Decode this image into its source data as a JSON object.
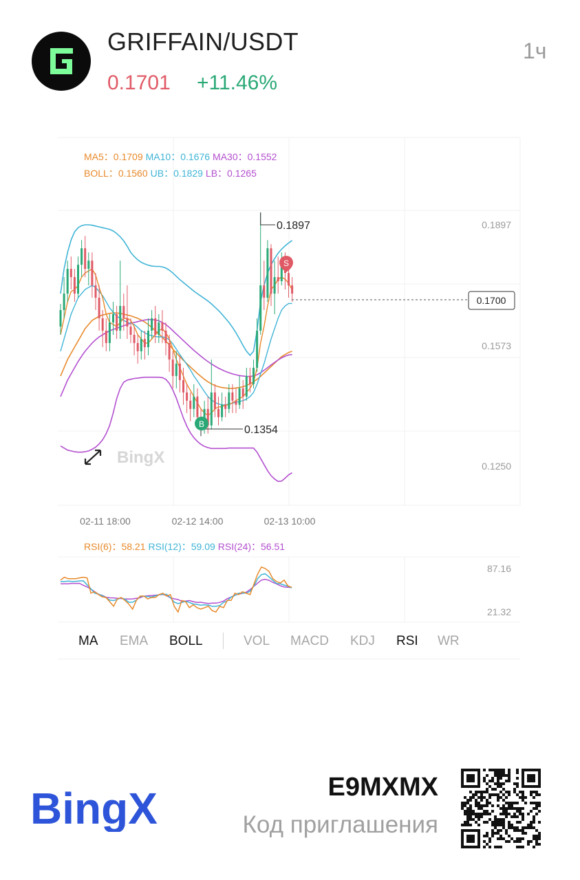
{
  "header": {
    "pair": "GRIFFAIN/USDT",
    "price": "0.1701",
    "change": "+11.46%",
    "interval": "1ч",
    "logo_icon": "griffain-g-icon",
    "price_color": "#e05a66",
    "change_color": "#2aa876"
  },
  "indicators": {
    "ma": [
      {
        "label": "MA5：",
        "value": "0.1709",
        "color": "#e8892b"
      },
      {
        "label": "MA10：",
        "value": "0.1676",
        "color": "#3fb4d6"
      },
      {
        "label": "MA30：",
        "value": "0.1552",
        "color": "#b34fcf"
      }
    ],
    "boll": [
      {
        "label": "BOLL：",
        "value": "0.1560",
        "color": "#e8892b"
      },
      {
        "label": "UB：",
        "value": "0.1829",
        "color": "#3fb4d6"
      },
      {
        "label": "LB：",
        "value": "0.1265",
        "color": "#b34fcf"
      }
    ],
    "rsi": [
      {
        "label": "RSI(6)：",
        "value": "58.21",
        "color": "#e8892b"
      },
      {
        "label": "RSI(12)：",
        "value": "59.09",
        "color": "#3fb4d6"
      },
      {
        "label": "RSI(24)：",
        "value": "56.51",
        "color": "#b34fcf"
      }
    ]
  },
  "chart_data": {
    "type": "candlestick",
    "price_axis_labels": [
      "0.1897",
      "0.1573",
      "0.1250"
    ],
    "current_price": "0.1700",
    "high_label": "0.1897",
    "low_label": "0.1354",
    "time_labels": [
      "02-11 18:00",
      "02-12 14:00",
      "02-13 10:00"
    ],
    "rsi_axis_labels": [
      "87.16",
      "21.32"
    ],
    "buy_marker": "B",
    "sell_marker": "S",
    "up_color": "#2aa876",
    "down_color": "#e05a66",
    "y_range": [
      0.1186,
      0.2079
    ],
    "grid": true,
    "watermark": "BingX",
    "candles": [
      [
        0.162,
        0.166,
        0.16,
        0.1675
      ],
      [
        0.166,
        0.17,
        0.164,
        0.174
      ],
      [
        0.17,
        0.176,
        0.168,
        0.178
      ],
      [
        0.176,
        0.174,
        0.171,
        0.179
      ],
      [
        0.174,
        0.17,
        0.168,
        0.176
      ],
      [
        0.17,
        0.177,
        0.169,
        0.179
      ],
      [
        0.177,
        0.181,
        0.174,
        0.183
      ],
      [
        0.181,
        0.176,
        0.174,
        0.184
      ],
      [
        0.176,
        0.178,
        0.172,
        0.18
      ],
      [
        0.178,
        0.172,
        0.169,
        0.18
      ],
      [
        0.172,
        0.169,
        0.166,
        0.175
      ],
      [
        0.169,
        0.164,
        0.161,
        0.172
      ],
      [
        0.164,
        0.161,
        0.157,
        0.166
      ],
      [
        0.161,
        0.158,
        0.156,
        0.164
      ],
      [
        0.158,
        0.163,
        0.156,
        0.165
      ],
      [
        0.163,
        0.165,
        0.16,
        0.168
      ],
      [
        0.165,
        0.161,
        0.159,
        0.167
      ],
      [
        0.161,
        0.167,
        0.159,
        0.178
      ],
      [
        0.167,
        0.164,
        0.161,
        0.17
      ],
      [
        0.164,
        0.162,
        0.159,
        0.172
      ],
      [
        0.162,
        0.16,
        0.158,
        0.164
      ],
      [
        0.16,
        0.158,
        0.155,
        0.162
      ],
      [
        0.158,
        0.156,
        0.153,
        0.16
      ],
      [
        0.156,
        0.159,
        0.154,
        0.161
      ],
      [
        0.159,
        0.157,
        0.154,
        0.161
      ],
      [
        0.157,
        0.161,
        0.155,
        0.164
      ],
      [
        0.161,
        0.164,
        0.159,
        0.166
      ],
      [
        0.164,
        0.16,
        0.158,
        0.167
      ],
      [
        0.16,
        0.163,
        0.158,
        0.165
      ],
      [
        0.163,
        0.161,
        0.158,
        0.166
      ],
      [
        0.161,
        0.158,
        0.155,
        0.163
      ],
      [
        0.158,
        0.154,
        0.151,
        0.16
      ],
      [
        0.154,
        0.15,
        0.147,
        0.156
      ],
      [
        0.15,
        0.153,
        0.147,
        0.156
      ],
      [
        0.153,
        0.149,
        0.146,
        0.155
      ],
      [
        0.149,
        0.146,
        0.143,
        0.152
      ],
      [
        0.146,
        0.144,
        0.141,
        0.148
      ],
      [
        0.144,
        0.142,
        0.139,
        0.146
      ],
      [
        0.142,
        0.145,
        0.14,
        0.148
      ],
      [
        0.145,
        0.14,
        0.138,
        0.147
      ],
      [
        0.14,
        0.137,
        0.1354,
        0.142
      ],
      [
        0.137,
        0.142,
        0.136,
        0.144
      ],
      [
        0.142,
        0.138,
        0.136,
        0.145
      ],
      [
        0.138,
        0.146,
        0.137,
        0.154
      ],
      [
        0.146,
        0.142,
        0.14,
        0.148
      ],
      [
        0.142,
        0.14,
        0.138,
        0.145
      ],
      [
        0.14,
        0.143,
        0.139,
        0.146
      ],
      [
        0.143,
        0.142,
        0.14,
        0.145
      ],
      [
        0.142,
        0.146,
        0.141,
        0.148
      ],
      [
        0.146,
        0.144,
        0.141,
        0.148
      ],
      [
        0.144,
        0.143,
        0.141,
        0.147
      ],
      [
        0.143,
        0.147,
        0.142,
        0.15
      ],
      [
        0.147,
        0.145,
        0.142,
        0.149
      ],
      [
        0.145,
        0.15,
        0.144,
        0.152
      ],
      [
        0.15,
        0.148,
        0.146,
        0.152
      ],
      [
        0.148,
        0.152,
        0.147,
        0.154
      ],
      [
        0.152,
        0.161,
        0.151,
        0.164
      ],
      [
        0.161,
        0.172,
        0.16,
        0.1897
      ],
      [
        0.172,
        0.169,
        0.166,
        0.178
      ],
      [
        0.169,
        0.181,
        0.168,
        0.183
      ],
      [
        0.181,
        0.17,
        0.167,
        0.182
      ],
      [
        0.17,
        0.174,
        0.165,
        0.178
      ],
      [
        0.174,
        0.173,
        0.17,
        0.179
      ],
      [
        0.173,
        0.178,
        0.172,
        0.18
      ],
      [
        0.178,
        0.175,
        0.171,
        0.18
      ],
      [
        0.175,
        0.172,
        0.169,
        0.176
      ],
      [
        0.172,
        0.17,
        0.168,
        0.174
      ]
    ],
    "ma5": [
      0.16,
      0.164,
      0.168,
      0.1705,
      0.171,
      0.172,
      0.174,
      0.175,
      0.1755,
      0.176,
      0.1745,
      0.1715,
      0.169,
      0.165,
      0.163,
      0.1625,
      0.162,
      0.163,
      0.164,
      0.164,
      0.1635,
      0.162,
      0.16,
      0.159,
      0.158,
      0.158,
      0.159,
      0.16,
      0.161,
      0.1615,
      0.1605,
      0.159,
      0.1565,
      0.154,
      0.152,
      0.15,
      0.148,
      0.1465,
      0.145,
      0.1435,
      0.142,
      0.141,
      0.1405,
      0.141,
      0.142,
      0.1425,
      0.1425,
      0.143,
      0.143,
      0.1435,
      0.144,
      0.1445,
      0.145,
      0.146,
      0.147,
      0.1485,
      0.152,
      0.158,
      0.162,
      0.167,
      0.171,
      0.172,
      0.1735,
      0.174,
      0.1735,
      0.1725,
      0.1709
    ],
    "ma10": [
      0.156,
      0.159,
      0.162,
      0.165,
      0.167,
      0.169,
      0.17,
      0.171,
      0.1715,
      0.172,
      0.1715,
      0.1705,
      0.1695,
      0.168,
      0.1665,
      0.1655,
      0.1645,
      0.164,
      0.1635,
      0.163,
      0.1628,
      0.1625,
      0.1618,
      0.161,
      0.1605,
      0.16,
      0.1598,
      0.1596,
      0.1595,
      0.1595,
      0.1593,
      0.1588,
      0.1578,
      0.1565,
      0.1552,
      0.154,
      0.1528,
      0.1515,
      0.15,
      0.1488,
      0.1475,
      0.1462,
      0.145,
      0.1442,
      0.1436,
      0.1432,
      0.143,
      0.143,
      0.1432,
      0.1434,
      0.1436,
      0.1438,
      0.144,
      0.1444,
      0.145,
      0.146,
      0.148,
      0.1505,
      0.153,
      0.156,
      0.159,
      0.1615,
      0.164,
      0.166,
      0.167,
      0.1676,
      0.1676
    ],
    "ma30": [
      0.145,
      0.147,
      0.149,
      0.1505,
      0.152,
      0.1535,
      0.1548,
      0.156,
      0.157,
      0.158,
      0.1588,
      0.1595,
      0.16,
      0.1605,
      0.161,
      0.1613,
      0.1616,
      0.1619,
      0.1622,
      0.1625,
      0.1628,
      0.163,
      0.1632,
      0.1634,
      0.1636,
      0.1637,
      0.1637,
      0.1636,
      0.1634,
      0.163,
      0.1625,
      0.1618,
      0.161,
      0.1602,
      0.1594,
      0.1586,
      0.1578,
      0.157,
      0.1562,
      0.1555,
      0.1548,
      0.1541,
      0.1535,
      0.1529,
      0.1524,
      0.1519,
      0.1515,
      0.1511,
      0.1508,
      0.1505,
      0.1503,
      0.1501,
      0.15,
      0.1499,
      0.1499,
      0.15,
      0.1503,
      0.1508,
      0.1514,
      0.152,
      0.1527,
      0.1533,
      0.1539,
      0.1544,
      0.1548,
      0.1551,
      0.1552
    ],
    "boll_mid": [
      0.15,
      0.152,
      0.154,
      0.1555,
      0.157,
      0.1585,
      0.16,
      0.1615,
      0.1625,
      0.1635,
      0.164,
      0.1645,
      0.1648,
      0.165,
      0.1652,
      0.1653,
      0.1653,
      0.1652,
      0.165,
      0.1648,
      0.1646,
      0.1643,
      0.164,
      0.1636,
      0.1631,
      0.1625,
      0.1618,
      0.161,
      0.1602,
      0.1594,
      0.1585,
      0.1575,
      0.1565,
      0.1556,
      0.1547,
      0.1538,
      0.153,
      0.1522,
      0.1514,
      0.1506,
      0.1499,
      0.1492,
      0.1486,
      0.1481,
      0.1477,
      0.1474,
      0.1472,
      0.1471,
      0.147,
      0.147,
      0.1471,
      0.1472,
      0.1474,
      0.1477,
      0.1481,
      0.1486,
      0.1492,
      0.1499,
      0.1507,
      0.1515,
      0.1523,
      0.1531,
      0.1539,
      0.1547,
      0.1552,
      0.1557,
      0.156
    ],
    "boll_ub": [
      0.17,
      0.176,
      0.18,
      0.183,
      0.185,
      0.186,
      0.1865,
      0.1867,
      0.1867,
      0.1866,
      0.1864,
      0.1862,
      0.186,
      0.1858,
      0.1856,
      0.1852,
      0.1846,
      0.1838,
      0.1828,
      0.1815,
      0.18,
      0.179,
      0.1782,
      0.1776,
      0.1772,
      0.1769,
      0.1767,
      0.1766,
      0.1766,
      0.1765,
      0.1762,
      0.1757,
      0.175,
      0.1742,
      0.1734,
      0.1727,
      0.172,
      0.1713,
      0.1706,
      0.17,
      0.1694,
      0.1688,
      0.1682,
      0.1675,
      0.1667,
      0.1659,
      0.165,
      0.164,
      0.163,
      0.1618,
      0.1605,
      0.159,
      0.1574,
      0.156,
      0.155,
      0.156,
      0.161,
      0.168,
      0.172,
      0.175,
      0.177,
      0.1785,
      0.1798,
      0.1808,
      0.1816,
      0.1823,
      0.1829
    ],
    "boll_lb": [
      0.133,
      0.1325,
      0.132,
      0.1318,
      0.1316,
      0.1315,
      0.1315,
      0.1316,
      0.1318,
      0.1322,
      0.1327,
      0.1335,
      0.1345,
      0.136,
      0.138,
      0.141,
      0.1445,
      0.147,
      0.1485,
      0.149,
      0.1492,
      0.1494,
      0.1495,
      0.1496,
      0.1497,
      0.1497,
      0.1497,
      0.1497,
      0.1497,
      0.1496,
      0.1492,
      0.1482,
      0.1466,
      0.1446,
      0.1422,
      0.1398,
      0.1378,
      0.1362,
      0.135,
      0.1341,
      0.1334,
      0.1329,
      0.1326,
      0.1324,
      0.1324,
      0.1324,
      0.1324,
      0.1324,
      0.1325,
      0.1325,
      0.1325,
      0.1325,
      0.1325,
      0.1325,
      0.1325,
      0.1325,
      0.1315,
      0.13,
      0.1285,
      0.127,
      0.1258,
      0.125,
      0.1244,
      0.1245,
      0.1252,
      0.126,
      0.1265
    ],
    "rsi_range": [
      10,
      100
    ],
    "rsi6": [
      68,
      72,
      70,
      70,
      70,
      71,
      72,
      71,
      50,
      52,
      48,
      45,
      44,
      38,
      32,
      42,
      44,
      40,
      35,
      28,
      40,
      46,
      46,
      42,
      44,
      44,
      48,
      50,
      46,
      48,
      32,
      24,
      40,
      38,
      30,
      34,
      30,
      28,
      30,
      32,
      26,
      24,
      32,
      30,
      40,
      40,
      50,
      48,
      52,
      50,
      48,
      62,
      76,
      86,
      84,
      80,
      70,
      66,
      64,
      68,
      60,
      58
    ]
  },
  "footer": {
    "brand": "BingX",
    "invite_code": "E9MXMX",
    "invite_label": "Код приглашения",
    "brand_color": "#2e55d9"
  }
}
